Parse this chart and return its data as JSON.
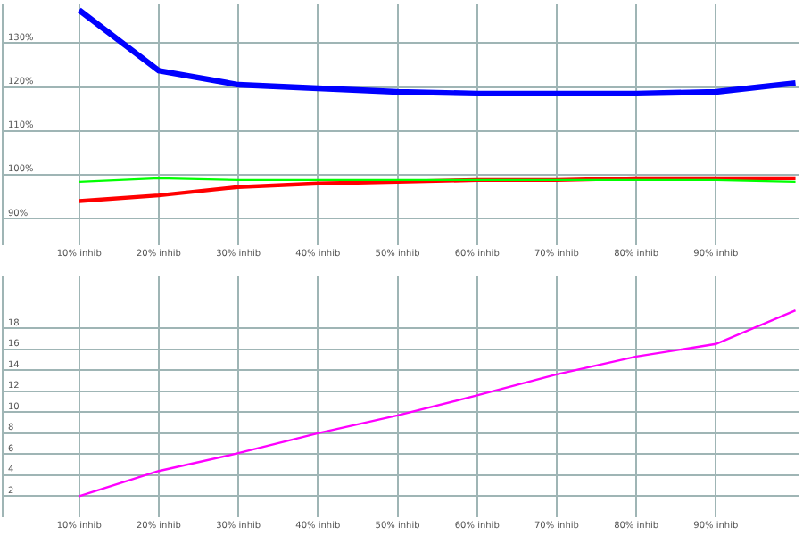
{
  "chart_data": [
    {
      "type": "line",
      "x": [
        10,
        20,
        30,
        40,
        50,
        60,
        70,
        80,
        90,
        100
      ],
      "xlim": [
        0.5,
        100.5
      ],
      "xticks": [
        {
          "value": 10,
          "label": "10% inhib"
        },
        {
          "value": 20,
          "label": "20% inhib"
        },
        {
          "value": 30,
          "label": "30% inhib"
        },
        {
          "value": 40,
          "label": "40% inhib"
        },
        {
          "value": 50,
          "label": "50% inhib"
        },
        {
          "value": 60,
          "label": "60% inhib"
        },
        {
          "value": 70,
          "label": "70% inhib"
        },
        {
          "value": 80,
          "label": "80% inhib"
        },
        {
          "value": 90,
          "label": "90% inhib"
        }
      ],
      "ylim": [
        84,
        139
      ],
      "yticks": [
        {
          "value": 90,
          "label": "90%"
        },
        {
          "value": 100,
          "label": "100%"
        },
        {
          "value": 110,
          "label": "110%"
        },
        {
          "value": 120,
          "label": "120%"
        },
        {
          "value": 130,
          "label": "130%"
        }
      ],
      "grid": true,
      "marker": "none",
      "line_style": "solid",
      "series": [
        {
          "color": "#0000ff",
          "values": [
            137.5,
            123.7,
            120.5,
            119.7,
            118.9,
            118.5,
            118.5,
            118.5,
            118.9,
            120.9
          ]
        },
        {
          "color": "#ff0000",
          "values": [
            94,
            95.3,
            97.2,
            98,
            98.4,
            98.8,
            98.8,
            99.2,
            99.2,
            99.2
          ]
        },
        {
          "color": "#00ff00",
          "values": [
            98.4,
            99.2,
            98.8,
            98.8,
            98.8,
            98.8,
            98.8,
            98.8,
            98.8,
            98.4
          ]
        }
      ]
    },
    {
      "type": "line",
      "x": [
        10,
        20,
        30,
        40,
        50,
        60,
        70,
        80,
        90,
        100
      ],
      "xlim": [
        0.5,
        100.5
      ],
      "xticks": [
        {
          "value": 10,
          "label": "10% inhib"
        },
        {
          "value": 20,
          "label": "20% inhib"
        },
        {
          "value": 30,
          "label": "30% inhib"
        },
        {
          "value": 40,
          "label": "40% inhib"
        },
        {
          "value": 50,
          "label": "50% inhib"
        },
        {
          "value": 60,
          "label": "60% inhib"
        },
        {
          "value": 70,
          "label": "70% inhib"
        },
        {
          "value": 80,
          "label": "80% inhib"
        },
        {
          "value": 90,
          "label": "90% inhib"
        }
      ],
      "ylim": [
        0,
        23
      ],
      "yticks": [
        2,
        4,
        6,
        8,
        10,
        12,
        14,
        16,
        18
      ],
      "grid": true,
      "marker": "none",
      "line_style": "solid",
      "series": [
        {
          "color": "#ff00ff",
          "values": [
            2,
            4.4,
            6.1,
            8,
            9.7,
            11.6,
            13.6,
            15.3,
            16.5,
            19.7
          ]
        }
      ]
    }
  ]
}
